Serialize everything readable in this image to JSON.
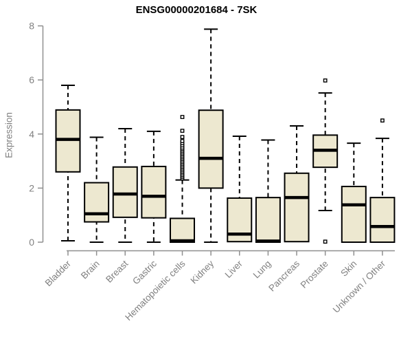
{
  "chart_data": {
    "type": "boxplot",
    "title": "ENSG00000201684 - 7SK",
    "ylabel": "Expression",
    "xlabel": "",
    "ylim": [
      0,
      8
    ],
    "yticks": [
      0,
      2,
      4,
      6,
      8
    ],
    "grid": false,
    "legend": "none",
    "box_fill_color": "#EDE8D0",
    "axis_color": "#8F8F8F",
    "label_color": "#808080",
    "box_border_color": "#000000",
    "categories": [
      "Bladder",
      "Brain",
      "Breast",
      "Gastric",
      "Hematopoietic cells",
      "Kidney",
      "Liver",
      "Lung",
      "Pancreas",
      "Prostate",
      "Skin",
      "Unknown / Other"
    ],
    "boxes": [
      {
        "label": "Bladder",
        "low": 0.05,
        "q1": 2.6,
        "median": 3.8,
        "q3": 4.89,
        "high": 5.8,
        "outliers": []
      },
      {
        "label": "Brain",
        "low": 0.0,
        "q1": 0.75,
        "median": 1.05,
        "q3": 2.2,
        "high": 3.88,
        "outliers": []
      },
      {
        "label": "Breast",
        "low": 0.0,
        "q1": 0.92,
        "median": 1.78,
        "q3": 2.78,
        "high": 4.2,
        "outliers": []
      },
      {
        "label": "Gastric",
        "low": 0.0,
        "q1": 0.9,
        "median": 1.7,
        "q3": 2.8,
        "high": 4.1,
        "outliers": []
      },
      {
        "label": "Hematopoietic cells",
        "low": 0.0,
        "q1": 0.0,
        "median": 0.05,
        "q3": 0.88,
        "high": 2.3,
        "outliers": [
          2.36,
          2.42,
          2.48,
          2.54,
          2.6,
          2.66,
          2.72,
          2.78,
          2.84,
          2.9,
          2.96,
          3.02,
          3.08,
          3.14,
          3.2,
          3.26,
          3.32,
          3.38,
          3.44,
          3.5,
          3.58,
          3.66,
          3.74,
          3.89,
          4.12,
          4.63
        ]
      },
      {
        "label": "Kidney",
        "low": 0.0,
        "q1": 2.0,
        "median": 3.1,
        "q3": 4.88,
        "high": 7.88,
        "outliers": []
      },
      {
        "label": "Liver",
        "low": 0.02,
        "q1": 0.02,
        "median": 0.3,
        "q3": 1.63,
        "high": 3.92,
        "outliers": []
      },
      {
        "label": "Lung",
        "low": 0.0,
        "q1": 0.0,
        "median": 0.04,
        "q3": 1.65,
        "high": 3.78,
        "outliers": []
      },
      {
        "label": "Pancreas",
        "low": 0.02,
        "q1": 0.02,
        "median": 1.65,
        "q3": 2.55,
        "high": 4.3,
        "outliers": []
      },
      {
        "label": "Prostate",
        "low": 1.17,
        "q1": 2.77,
        "median": 3.4,
        "q3": 3.96,
        "high": 5.52,
        "outliers": [
          5.98,
          0.02
        ]
      },
      {
        "label": "Skin",
        "low": 0.0,
        "q1": 0.0,
        "median": 1.38,
        "q3": 2.06,
        "high": 3.66,
        "outliers": []
      },
      {
        "label": "Unknown / Other",
        "low": 0.0,
        "q1": 0.0,
        "median": 0.58,
        "q3": 1.65,
        "high": 3.84,
        "outliers": [
          4.5
        ]
      }
    ]
  }
}
